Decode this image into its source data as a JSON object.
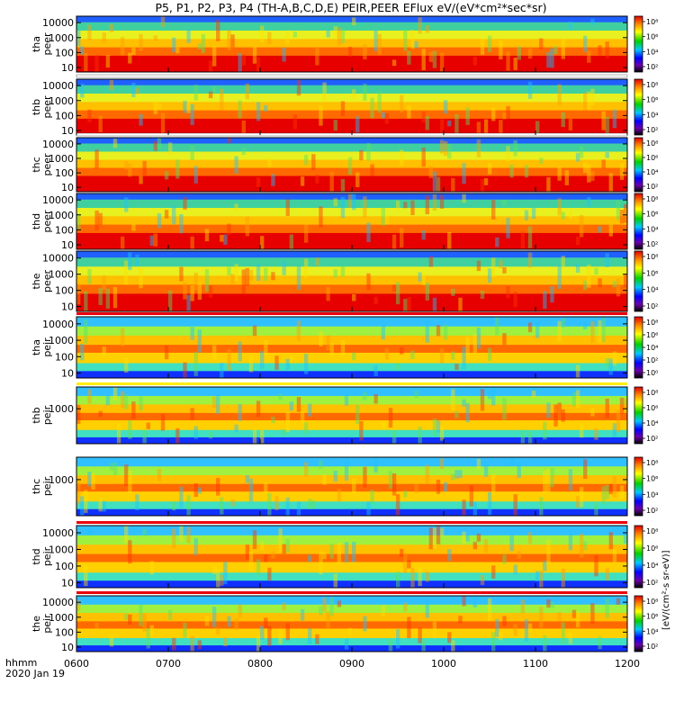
{
  "chart_data": {
    "type": "heatmap",
    "title": "P5, P1, P2, P3, P4 (TH-A,B,C,D,E) PEIR,PEER EFlux eV/(eV*cm²*sec*sr)",
    "colorbar_label": "[eV/(cm²-s sr-eV)]",
    "x_ticks": [
      "0600",
      "0700",
      "0800",
      "0900",
      "1000",
      "1100",
      "1200"
    ],
    "x_range_hours": [
      6,
      12
    ],
    "x_footer": {
      "line1": "hhmm",
      "line2": "2020 Jan 19"
    },
    "colorbar_ticks": [
      "10⁸",
      "10⁶",
      "10⁴",
      "10²",
      "10⁰"
    ],
    "panels": [
      {
        "probe": "tha",
        "species": "peer",
        "y_ticks": [
          "10000",
          "1000",
          "100",
          "10"
        ],
        "ylim_ev": [
          5,
          27000
        ],
        "cbar_ticks": [
          "10⁸",
          "10⁶",
          "10⁴",
          "10²"
        ],
        "bar": "none"
      },
      {
        "probe": "thb",
        "species": "peer",
        "y_ticks": [
          "10000",
          "1000",
          "100",
          "10"
        ],
        "ylim_ev": [
          5,
          27000
        ],
        "cbar_ticks": [
          "10⁸",
          "10⁶",
          "10⁴",
          "10²"
        ],
        "bar": "white"
      },
      {
        "probe": "thc",
        "species": "peer",
        "y_ticks": [
          "10000",
          "1000",
          "100",
          "10"
        ],
        "ylim_ev": [
          5,
          27000
        ],
        "cbar_ticks": [
          "10⁸",
          "10⁶",
          "10⁴",
          "10²"
        ],
        "bar": "white"
      },
      {
        "probe": "thd",
        "species": "peer",
        "y_ticks": [
          "10000",
          "1000",
          "100",
          "10"
        ],
        "ylim_ev": [
          5,
          27000
        ],
        "cbar_ticks": [
          "10⁸",
          "10⁶",
          "10⁴",
          "10²"
        ],
        "bar": "none"
      },
      {
        "probe": "the",
        "species": "peer",
        "y_ticks": [
          "10000",
          "1000",
          "100",
          "10"
        ],
        "ylim_ev": [
          5,
          27000
        ],
        "cbar_ticks": [
          "10⁸",
          "10⁶",
          "10⁴",
          "10²"
        ],
        "bar": "none"
      },
      {
        "probe": "tha",
        "species": "peir",
        "y_ticks": [
          "10000",
          "1000",
          "100",
          "10"
        ],
        "ylim_ev": [
          5,
          27000
        ],
        "cbar_ticks": [
          "10⁸",
          "10⁶",
          "10⁴",
          "10²",
          "10⁰"
        ],
        "bar": "red-white"
      },
      {
        "probe": "thb",
        "species": "peir",
        "y_ticks": [
          "1000"
        ],
        "ylim_ev": [
          5,
          27000
        ],
        "cbar_ticks": [
          "10⁸",
          "10⁶",
          "10⁴",
          "10²"
        ],
        "bar": "yellow"
      },
      {
        "probe": "thc",
        "species": "peir",
        "y_ticks": [
          "1000"
        ],
        "ylim_ev": [
          5,
          27000
        ],
        "cbar_ticks": [
          "10⁸",
          "10⁶",
          "10⁴",
          "10²"
        ],
        "bar": "none"
      },
      {
        "probe": "thd",
        "species": "peir",
        "y_ticks": [
          "10000",
          "1000",
          "100",
          "10"
        ],
        "ylim_ev": [
          5,
          27000
        ],
        "cbar_ticks": [
          "10⁸",
          "10⁶",
          "10⁴",
          "10²"
        ],
        "bar": "red"
      },
      {
        "probe": "the",
        "species": "peir",
        "y_ticks": [
          "10000",
          "1000",
          "100",
          "10"
        ],
        "ylim_ev": [
          5,
          27000
        ],
        "cbar_ticks": [
          "10⁸",
          "10⁶",
          "10⁴",
          "10²"
        ],
        "bar": "red"
      }
    ],
    "colors": {
      "red": "#e8000b",
      "yellow": "#ffef00",
      "white": "#ffffff"
    }
  }
}
